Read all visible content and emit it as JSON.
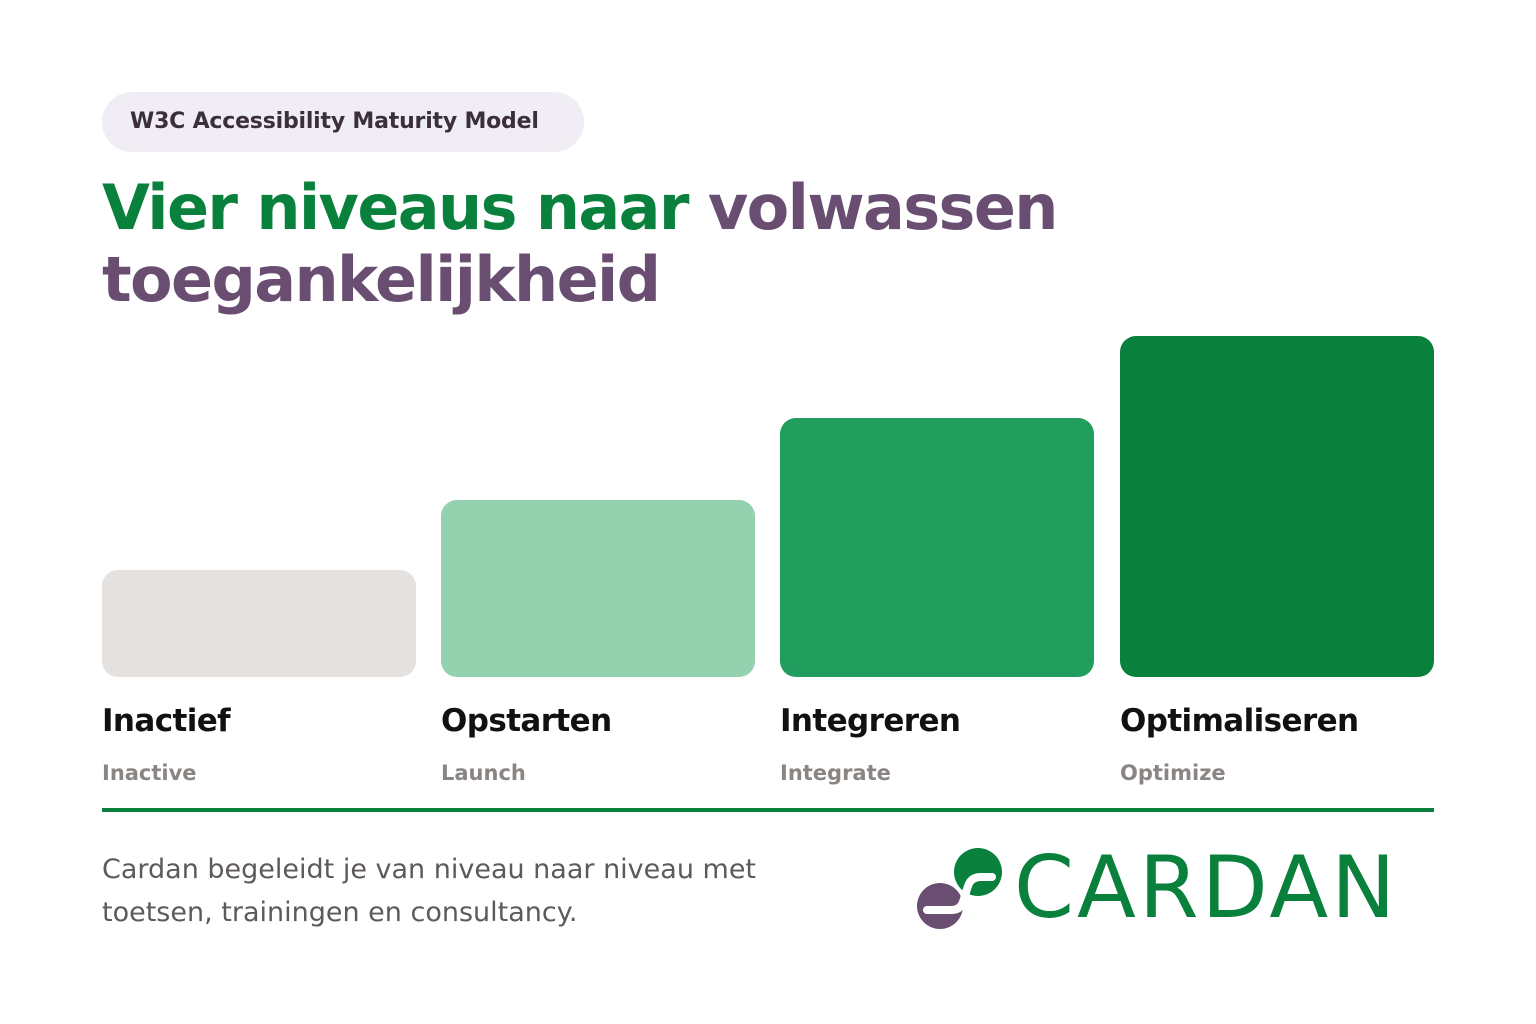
{
  "badge": "W3C Accessibility Maturity Model",
  "title": {
    "part1": "Vier niveaus naar ",
    "part2": "volwassen toegankelijkheid"
  },
  "levels": [
    {
      "name": "Inactief",
      "translation": "Inactive",
      "color": "#e4e1df"
    },
    {
      "name": "Opstarten",
      "translation": "Launch",
      "color": "#94d2af"
    },
    {
      "name": "Integreren",
      "translation": "Integrate",
      "color": "#219e5d"
    },
    {
      "name": "Optimaliseren",
      "translation": "Optimize",
      "color": "#0a803d"
    }
  ],
  "footer": {
    "text": "Cardan begeleidt je van niveau naar niveau met toetsen, trainingen en consultancy."
  },
  "logo": {
    "name": "CARDAN",
    "icon": "cardan-logo-icon"
  },
  "colors": {
    "green": "#0a803d",
    "purple": "#6a4e72",
    "badge_bg": "#f1edf4"
  }
}
